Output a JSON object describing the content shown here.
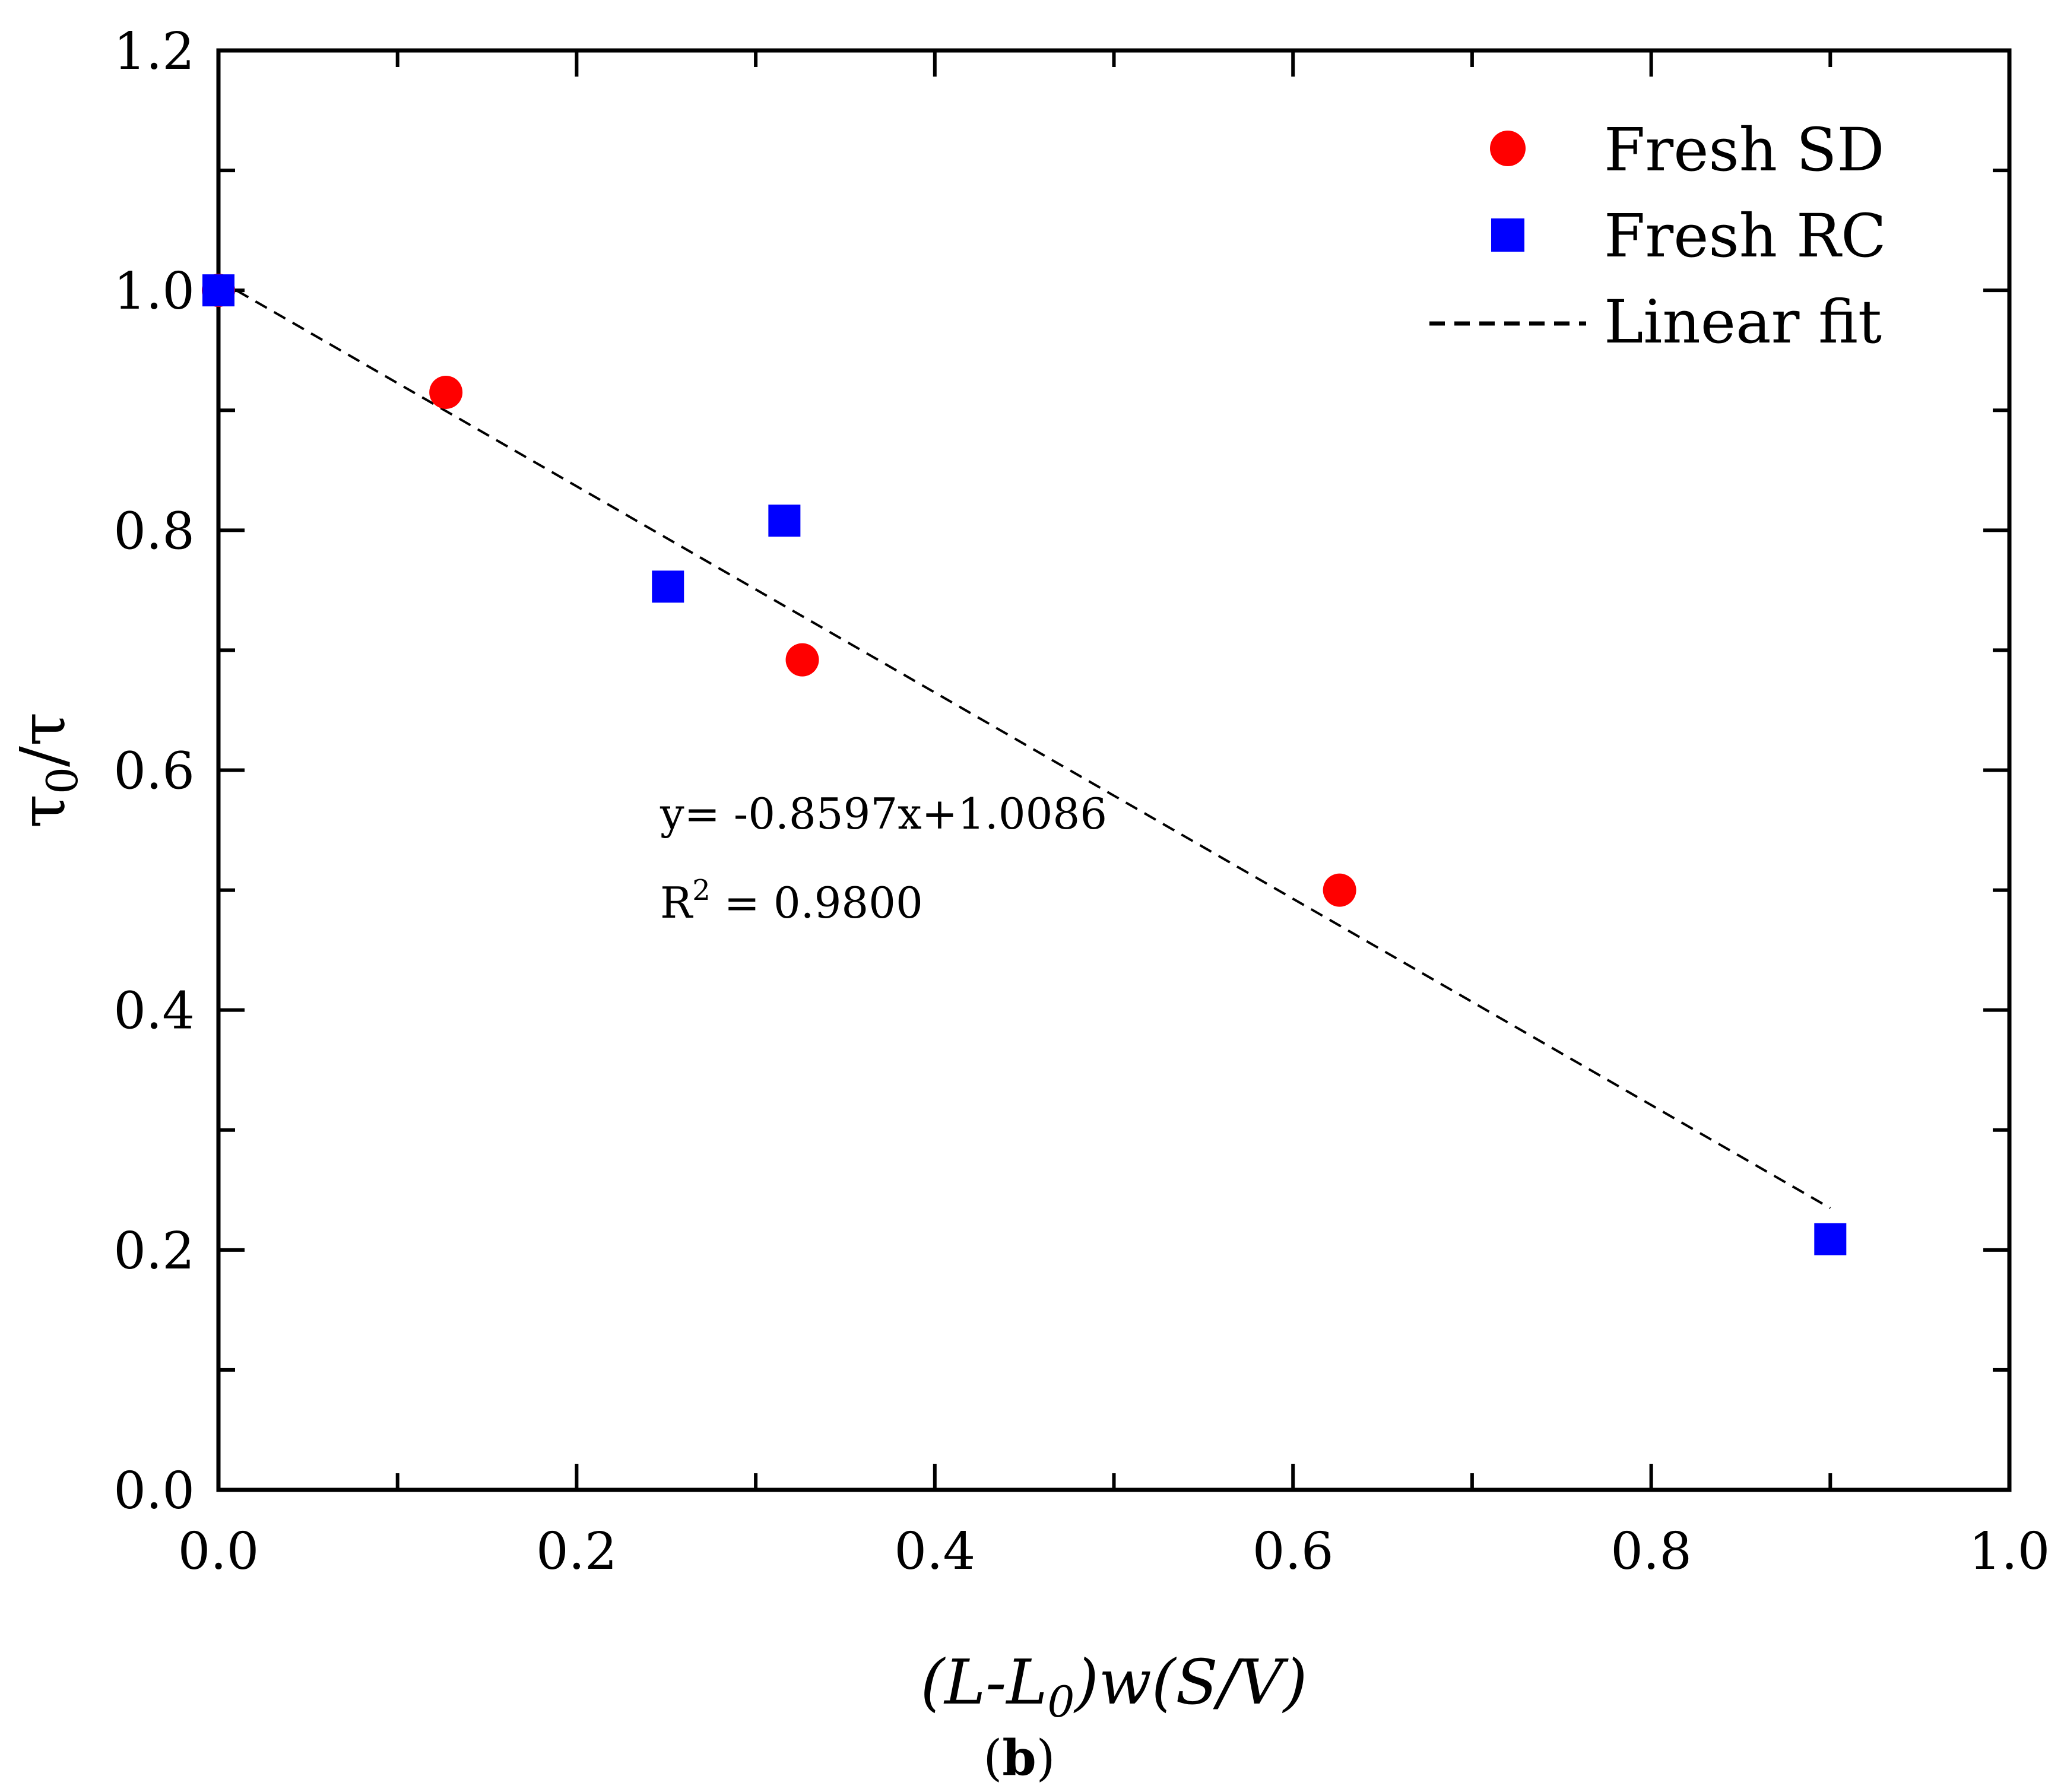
{
  "chart_data": {
    "type": "scatter",
    "xlabel": "(L-L0)w(S/V)",
    "xlabel_parts": {
      "pre": "(L-L",
      "sub": "0",
      "post": ")w(S/V)"
    },
    "ylabel": "τ0/τ",
    "ylabel_parts": {
      "pre": "τ",
      "sub": "0",
      "post": "/τ"
    },
    "xlim": [
      0.0,
      1.0
    ],
    "ylim": [
      0.0,
      1.2
    ],
    "x_ticks": [
      0.0,
      0.2,
      0.4,
      0.6,
      0.8,
      1.0
    ],
    "x_tick_labels": [
      "0.0",
      "0.2",
      "0.4",
      "0.6",
      "0.8",
      "1.0"
    ],
    "y_ticks": [
      0.0,
      0.2,
      0.4,
      0.6,
      0.8,
      1.0,
      1.2
    ],
    "y_tick_labels": [
      "0.0",
      "0.2",
      "0.4",
      "0.6",
      "0.8",
      "1.0",
      "1.2"
    ],
    "grid": false,
    "legend_position": "top-right",
    "series": [
      {
        "name": "Fresh SD",
        "marker": "circle",
        "color": "#ff0000",
        "points": [
          {
            "x": 0.0,
            "y": 1.0
          },
          {
            "x": 0.127,
            "y": 0.915
          },
          {
            "x": 0.326,
            "y": 0.692
          },
          {
            "x": 0.626,
            "y": 0.5
          }
        ]
      },
      {
        "name": "Fresh RC",
        "marker": "square",
        "color": "#0000ff",
        "points": [
          {
            "x": 0.0,
            "y": 1.0
          },
          {
            "x": 0.251,
            "y": 0.753
          },
          {
            "x": 0.316,
            "y": 0.808
          },
          {
            "x": 0.9,
            "y": 0.209
          }
        ]
      }
    ],
    "fit": {
      "name": "Linear fit",
      "style": "dashed",
      "color": "#000000",
      "slope": -0.8597,
      "intercept": 1.0086,
      "x_range": [
        0.0,
        0.9
      ]
    },
    "annotations": {
      "equation": "y= -0.8597x+1.0086",
      "r2_pre": "R",
      "r2_sup": "2",
      "r2_post": " = 0.9800"
    },
    "panel_label": {
      "open": "(",
      "letter": "b",
      "close": ")"
    }
  }
}
